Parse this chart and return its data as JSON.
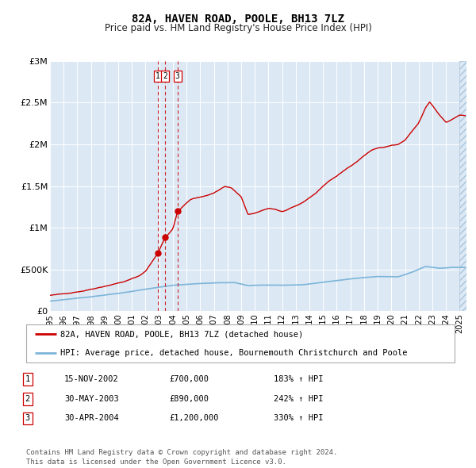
{
  "title": "82A, HAVEN ROAD, POOLE, BH13 7LZ",
  "subtitle": "Price paid vs. HM Land Registry's House Price Index (HPI)",
  "background_color": "#dce9f5",
  "plot_bg_color": "#dce9f5",
  "grid_color": "#ffffff",
  "red_line_color": "#cc0000",
  "blue_line_color": "#7cb4d8",
  "ylim": [
    0,
    3000000
  ],
  "yticks": [
    0,
    500000,
    1000000,
    1500000,
    2000000,
    2500000,
    3000000
  ],
  "ytick_labels": [
    "£0",
    "£500K",
    "£1M",
    "£1.5M",
    "£2M",
    "£2.5M",
    "£3M"
  ],
  "xlim_start": 1995.0,
  "xlim_end": 2025.5,
  "xlabel_years": [
    1995,
    1996,
    1997,
    1998,
    1999,
    2000,
    2001,
    2002,
    2003,
    2004,
    2005,
    2006,
    2007,
    2008,
    2009,
    2010,
    2011,
    2012,
    2013,
    2014,
    2015,
    2016,
    2017,
    2018,
    2019,
    2020,
    2021,
    2022,
    2023,
    2024,
    2025
  ],
  "sales": [
    {
      "date": 2002.88,
      "price": 700000,
      "label": "1"
    },
    {
      "date": 2003.41,
      "price": 890000,
      "label": "2"
    },
    {
      "date": 2004.33,
      "price": 1200000,
      "label": "3"
    }
  ],
  "legend_red": "82A, HAVEN ROAD, POOLE, BH13 7LZ (detached house)",
  "legend_blue": "HPI: Average price, detached house, Bournemouth Christchurch and Poole",
  "table_rows": [
    {
      "num": "1",
      "date": "15-NOV-2002",
      "price": "£700,000",
      "hpi": "183% ↑ HPI"
    },
    {
      "num": "2",
      "date": "30-MAY-2003",
      "price": "£890,000",
      "hpi": "242% ↑ HPI"
    },
    {
      "num": "3",
      "date": "30-APR-2004",
      "price": "£1,200,000",
      "hpi": "330% ↑ HPI"
    }
  ],
  "footnote": "Contains HM Land Registry data © Crown copyright and database right 2024.\nThis data is licensed under the Open Government Licence v3.0."
}
